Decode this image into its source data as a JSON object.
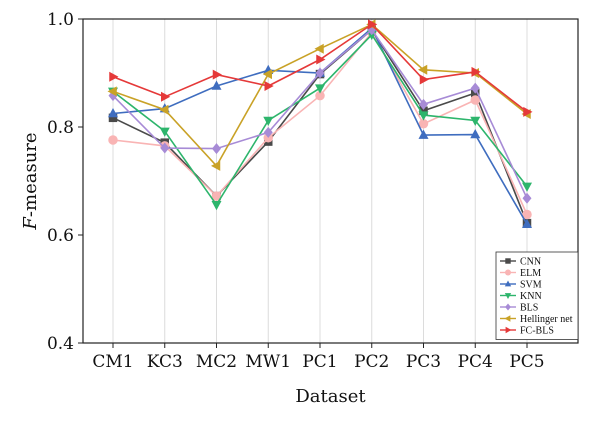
{
  "chart_data": {
    "type": "line",
    "title": "",
    "xlabel": "Dataset",
    "ylabel_italic": "F",
    "ylabel_rest": "-measure",
    "categories": [
      "CM1",
      "KC3",
      "MC2",
      "MW1",
      "PC1",
      "PC2",
      "PC3",
      "PC4",
      "PC5"
    ],
    "ylim": [
      0.4,
      1.0
    ],
    "yticks": [
      "0.4",
      "0.6",
      "0.8",
      "1.0"
    ],
    "legend_position": "bottom-right",
    "grid": "vertical",
    "series": [
      {
        "name": "CNN",
        "color": "#4a4a4a",
        "marker": "square",
        "values": [
          0.817,
          0.771,
          0.672,
          0.773,
          0.898,
          0.98,
          0.83,
          0.863,
          0.622
        ]
      },
      {
        "name": "ELM",
        "color": "#f9b4b4",
        "marker": "circle",
        "values": [
          0.776,
          0.765,
          0.672,
          0.78,
          0.858,
          0.975,
          0.806,
          0.85,
          0.638
        ]
      },
      {
        "name": "SVM",
        "color": "#3f6dbf",
        "marker": "triangle-up",
        "values": [
          0.825,
          0.834,
          0.876,
          0.905,
          0.9,
          0.983,
          0.785,
          0.786,
          0.62
        ]
      },
      {
        "name": "KNN",
        "color": "#2db56c",
        "marker": "triangle-down",
        "values": [
          0.866,
          0.792,
          0.656,
          0.812,
          0.872,
          0.971,
          0.822,
          0.812,
          0.69
        ]
      },
      {
        "name": "BLS",
        "color": "#a78bd6",
        "marker": "diamond",
        "values": [
          0.858,
          0.761,
          0.76,
          0.79,
          0.9,
          0.98,
          0.842,
          0.872,
          0.668
        ]
      },
      {
        "name": "Hellinger net",
        "color": "#c9a227",
        "marker": "triangle-left",
        "values": [
          0.866,
          0.832,
          0.728,
          0.898,
          0.945,
          0.99,
          0.906,
          0.9,
          0.824
        ]
      },
      {
        "name": "FC-BLS",
        "color": "#e53939",
        "marker": "triangle-right",
        "values": [
          0.893,
          0.856,
          0.897,
          0.876,
          0.925,
          0.99,
          0.888,
          0.902,
          0.828
        ]
      }
    ]
  }
}
